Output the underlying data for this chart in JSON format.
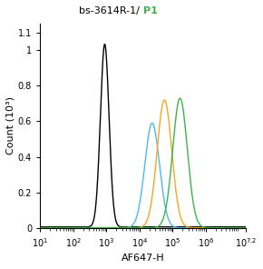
{
  "title_black": "bs-3614R-1/ ",
  "title_green": "P1",
  "xlabel": "AF647-H",
  "ylabel": "Count (10³)",
  "xlim_log": [
    10,
    15850000.0
  ],
  "ylim": [
    0,
    1.15
  ],
  "yticks": [
    0,
    0.2,
    0.4,
    0.6,
    0.8,
    1.0,
    1.1
  ],
  "ytick_labels": [
    "0",
    "0.2",
    "0.4",
    "0.6",
    "0.8",
    "1",
    "1.1"
  ],
  "curves": [
    {
      "color": "#000000",
      "peak_log": 2.95,
      "sigma_log": 0.13,
      "amplitude": 1.03,
      "baseline": 0.005
    },
    {
      "color": "#4db8f0",
      "peak_log": 4.38,
      "sigma_log": 0.22,
      "amplitude": 0.59,
      "baseline": 0.0
    },
    {
      "color": "#f5a623",
      "peak_log": 4.75,
      "sigma_log": 0.22,
      "amplitude": 0.72,
      "baseline": 0.0
    },
    {
      "color": "#3cb54a",
      "peak_log": 5.22,
      "sigma_log": 0.22,
      "amplitude": 0.73,
      "baseline": 0.0
    }
  ],
  "fig_width": 2.9,
  "fig_height": 2.96,
  "dpi": 100,
  "title_fontsize": 8,
  "axis_fontsize": 8,
  "tick_fontsize": 7
}
